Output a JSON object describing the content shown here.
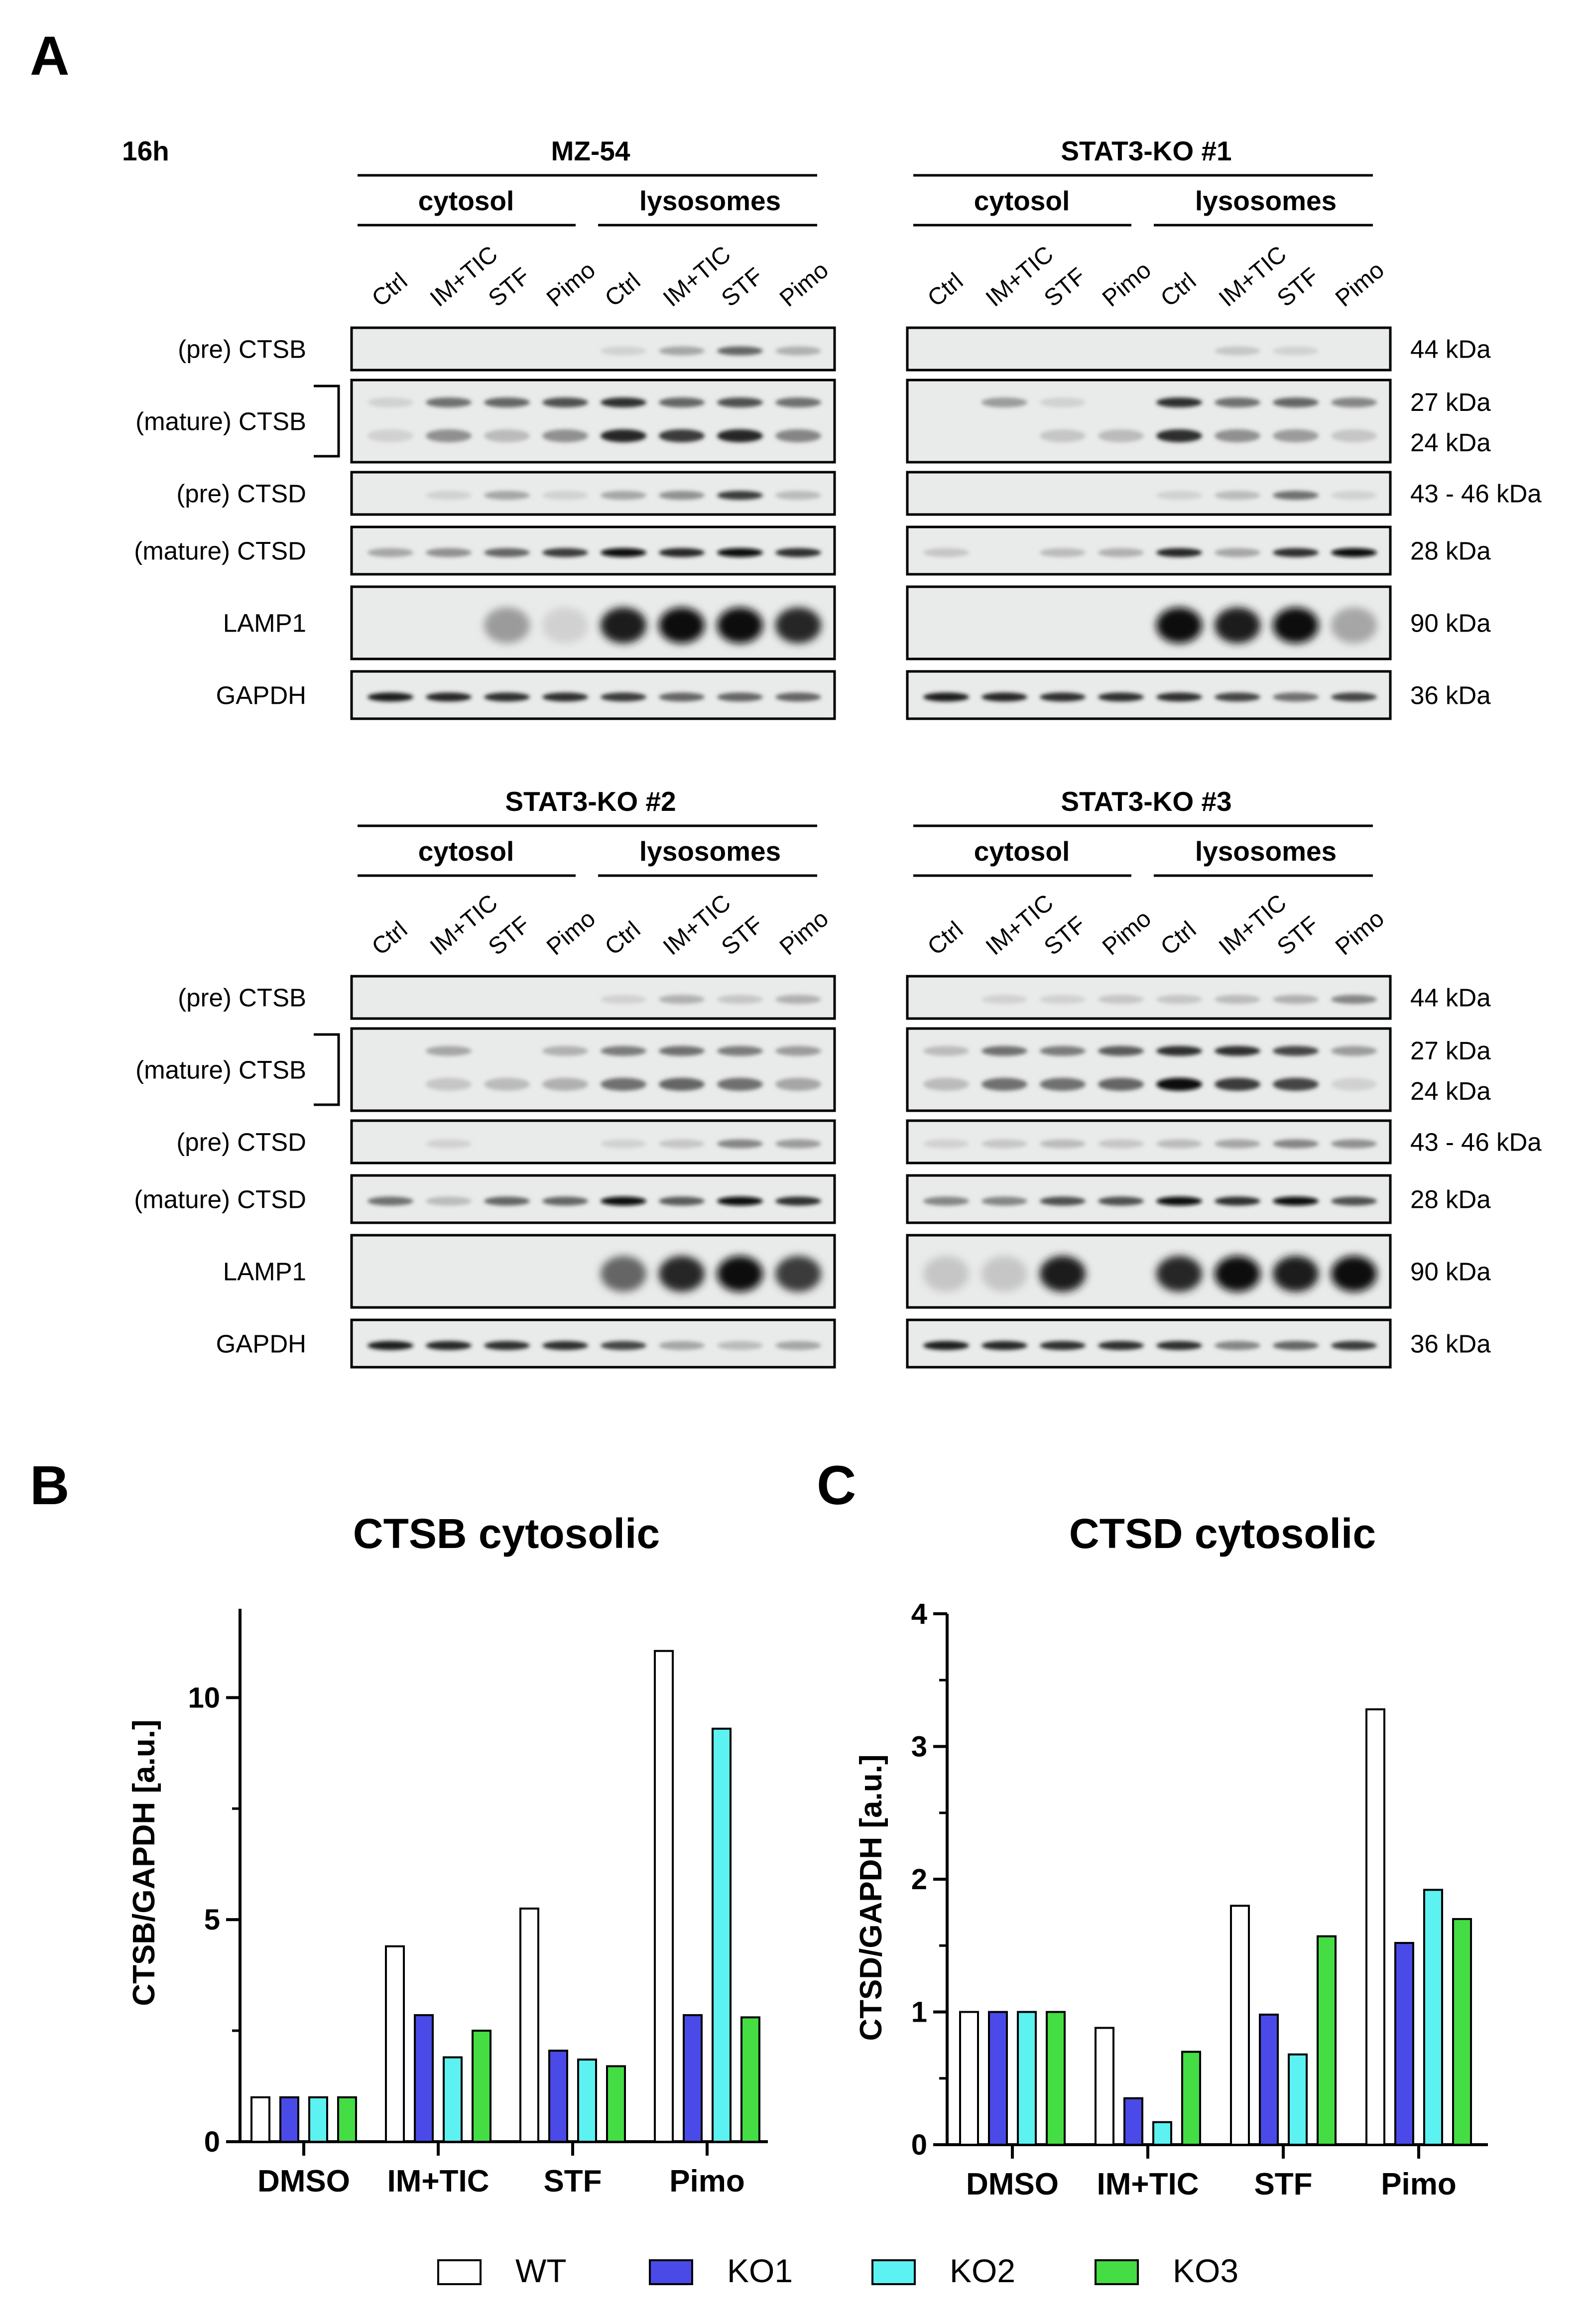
{
  "panel_labels": {
    "a": "A",
    "b": "B",
    "c": "C"
  },
  "timepoint": "16h",
  "blots": [
    {
      "title": "MZ-54"
    },
    {
      "title": "STAT3-KO #1"
    },
    {
      "title": "STAT3-KO #2"
    },
    {
      "title": "STAT3-KO #3"
    }
  ],
  "fractions": [
    "cytosol",
    "lysosomes"
  ],
  "lanes": [
    "Ctrl",
    "IM+TIC",
    "STF",
    "Pimo",
    "Ctrl",
    "IM+TIC",
    "STF",
    "Pimo"
  ],
  "rows": [
    {
      "label": "(pre) CTSB",
      "kda": [
        "44 kDa"
      ]
    },
    {
      "label": "(mature) CTSB",
      "kda": [
        "27 kDa",
        "24 kDa"
      ]
    },
    {
      "label": "(pre) CTSD",
      "kda": [
        "43 - 46 kDa"
      ]
    },
    {
      "label": "(mature) CTSD",
      "kda": [
        "28 kDa"
      ]
    },
    {
      "label": "LAMP1",
      "kda": [
        "90 kDa"
      ]
    },
    {
      "label": "GAPDH",
      "kda": [
        "36 kDa"
      ]
    }
  ],
  "legend": [
    {
      "name": "WT",
      "color": "#ffffff"
    },
    {
      "name": "KO1",
      "color": "#4a4ae8"
    },
    {
      "name": "KO2",
      "color": "#5cf2f2"
    },
    {
      "name": "KO3",
      "color": "#44dd44"
    }
  ],
  "chart_data": [
    {
      "type": "bar",
      "title": "CTSB cytosolic",
      "ylabel": "CTSB/GAPDH [a.u.]",
      "xlabel": "",
      "ylim": [
        0,
        12
      ],
      "yticks": [
        "0",
        "5",
        "10"
      ],
      "categories": [
        "DMSO",
        "IM+TIC",
        "STF",
        "Pimo"
      ],
      "series": [
        {
          "name": "WT",
          "values": [
            1.0,
            4.4,
            5.25,
            11.05
          ]
        },
        {
          "name": "KO1",
          "values": [
            1.0,
            2.85,
            2.05,
            2.85
          ]
        },
        {
          "name": "KO2",
          "values": [
            1.0,
            1.9,
            1.85,
            9.3
          ]
        },
        {
          "name": "KO3",
          "values": [
            1.0,
            2.5,
            1.7,
            2.8
          ]
        }
      ]
    },
    {
      "type": "bar",
      "title": "CTSD cytosolic",
      "ylabel": "CTSD/GAPDH [a.u.]",
      "xlabel": "",
      "ylim": [
        0,
        4
      ],
      "yticks": [
        "0",
        "1",
        "2",
        "3",
        "4"
      ],
      "categories": [
        "DMSO",
        "IM+TIC",
        "STF",
        "Pimo"
      ],
      "series": [
        {
          "name": "WT",
          "values": [
            1.0,
            0.88,
            1.8,
            3.28
          ]
        },
        {
          "name": "KO1",
          "values": [
            1.0,
            0.35,
            0.98,
            1.52
          ]
        },
        {
          "name": "KO2",
          "values": [
            1.0,
            0.17,
            0.68,
            1.92
          ]
        },
        {
          "name": "KO3",
          "values": [
            1.0,
            0.7,
            1.57,
            1.7
          ]
        }
      ]
    }
  ]
}
